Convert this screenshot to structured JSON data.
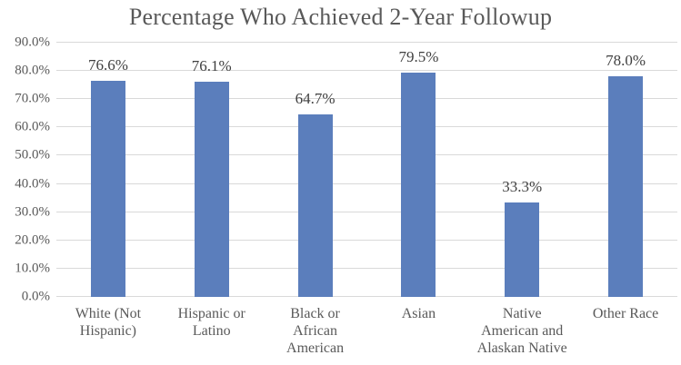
{
  "chart_data": {
    "type": "bar",
    "title": "Percentage Who Achieved 2-Year Followup",
    "categories": [
      "White (Not Hispanic)",
      "Hispanic or Latino",
      "Black or African American",
      "Asian",
      "Native American and Alaskan Native",
      "Other Race"
    ],
    "values": [
      76.6,
      76.1,
      64.7,
      79.5,
      33.3,
      78.0
    ],
    "data_labels": [
      "76.6%",
      "76.1%",
      "64.7%",
      "79.5%",
      "33.3%",
      "78.0%"
    ],
    "xlabel": "",
    "ylabel": "",
    "ylim": [
      0,
      90
    ],
    "ytick_labels": [
      "0.0%",
      "10.0%",
      "20.0%",
      "30.0%",
      "40.0%",
      "50.0%",
      "60.0%",
      "70.0%",
      "80.0%",
      "90.0%"
    ],
    "grid": true,
    "legend": false,
    "bar_color": "#5B7EBC",
    "gridline_color": "#D9D9D9",
    "axis_text_color": "#595959",
    "data_label_color": "#404040",
    "title_color": "#595959"
  }
}
